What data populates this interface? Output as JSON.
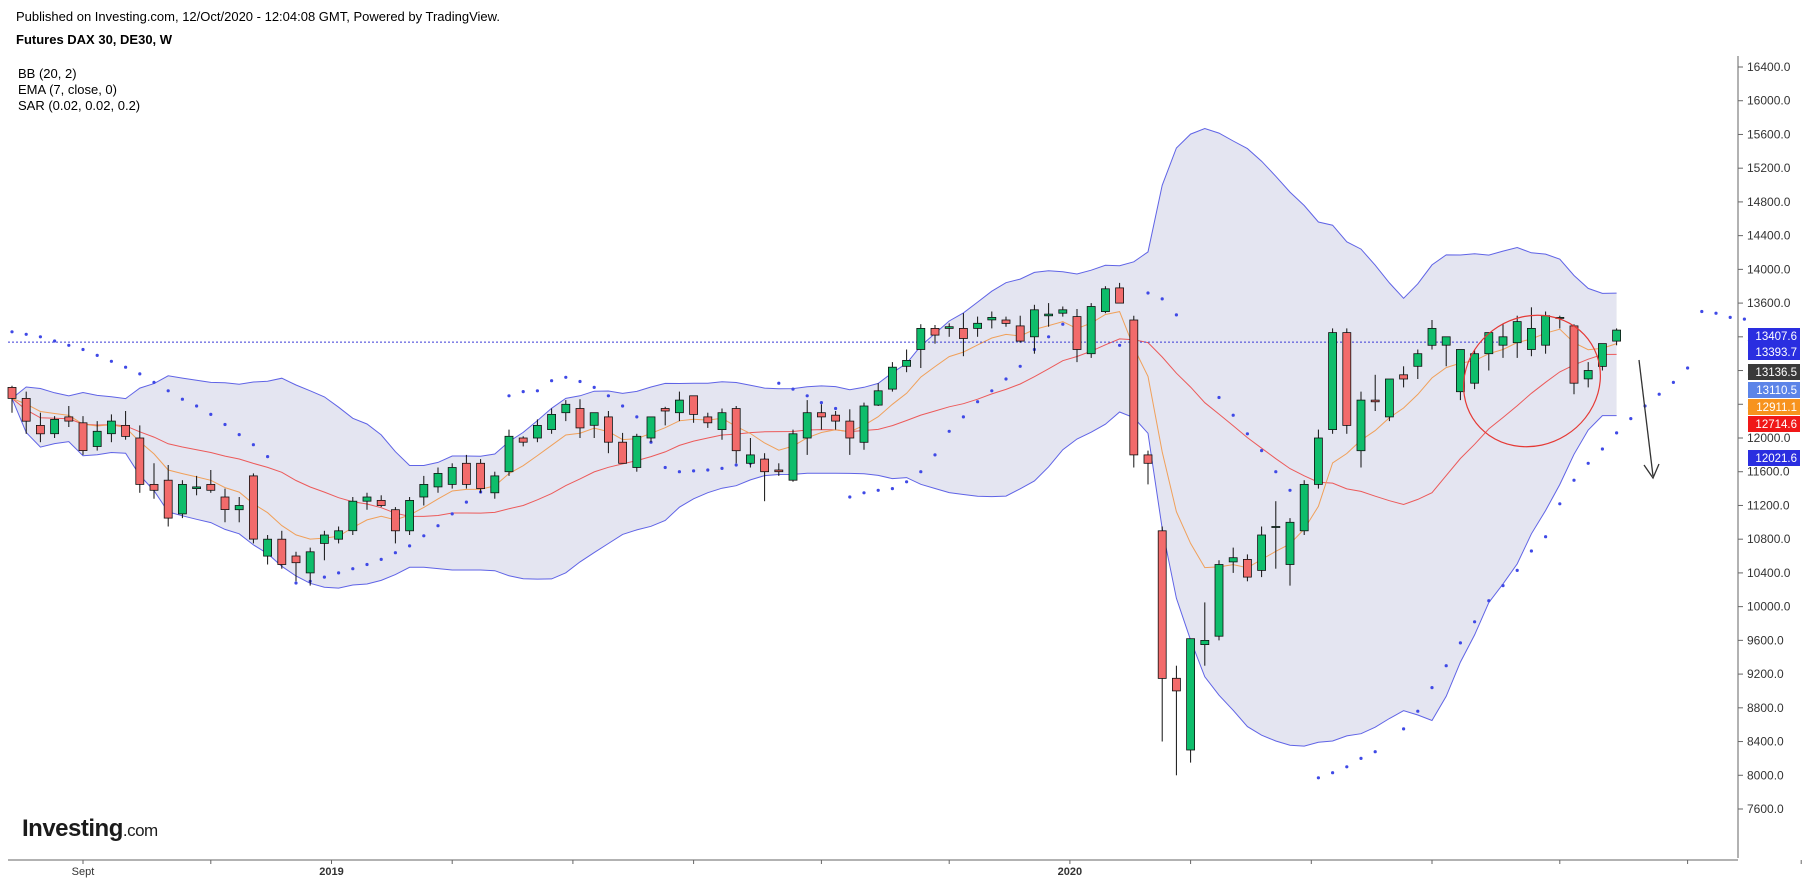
{
  "header": {
    "published": "Published on Investing.com, 12/Oct/2020 - 12:04:08 GMT, Powered by TradingView.",
    "symbol": "Futures DAX 30, DE30, W"
  },
  "indicators": [
    "BB (20, 2)",
    "EMA (7, close, 0)",
    "SAR (0.02, 0.02, 0.2)"
  ],
  "logo": {
    "main": "Investing",
    "suffix": ".com"
  },
  "colors": {
    "up": "#0ebd6b",
    "down": "#f26b6b",
    "bb_band": "#5f63e6",
    "bb_fill": "#e4e5f1",
    "ema": "#f0a05a",
    "bb_basis": "#ec5a5a",
    "sar": "#3f49e6",
    "annotation": "#e53935"
  },
  "chart_data": {
    "type": "candlestick",
    "ylim": [
      7500,
      16500
    ],
    "y_ticks": [
      "16400.0",
      "16000.0",
      "15600.0",
      "15200.0",
      "14800.0",
      "14400.0",
      "14000.0",
      "13600.0",
      "13200.0",
      "12800.0",
      "12400.0",
      "12000.0",
      "11600.0",
      "11200.0",
      "10800.0",
      "10400.0",
      "10000.0",
      "9600.0",
      "9200.0",
      "8800.0",
      "8400.0",
      "8000.0",
      "7600.0"
    ],
    "x_labels": [
      {
        "label": "Sept",
        "bar": 5
      },
      {
        "label": "2019",
        "bar": 22.5,
        "bold": true
      },
      {
        "label": "2020",
        "bar": 74.5,
        "bold": true
      }
    ],
    "x_minor_ticks": [
      14,
      31,
      39.5,
      48,
      57,
      66,
      83,
      91.5,
      100,
      109,
      118,
      126,
      135
    ],
    "candles": [
      [
        12600,
        12620,
        12300,
        12470
      ],
      [
        12470,
        12550,
        12050,
        12200
      ],
      [
        12150,
        12300,
        11950,
        12050
      ],
      [
        12050,
        12260,
        12000,
        12220
      ],
      [
        12250,
        12380,
        12130,
        12200
      ],
      [
        12180,
        12260,
        11800,
        11850
      ],
      [
        11900,
        12200,
        11850,
        12080
      ],
      [
        12050,
        12280,
        11950,
        12200
      ],
      [
        12150,
        12320,
        11980,
        12020
      ],
      [
        12000,
        12150,
        11350,
        11450
      ],
      [
        11450,
        11700,
        11280,
        11380
      ],
      [
        11500,
        11680,
        10950,
        11050
      ],
      [
        11100,
        11500,
        11050,
        11450
      ],
      [
        11400,
        11550,
        11320,
        11420
      ],
      [
        11450,
        11620,
        11350,
        11380
      ],
      [
        11300,
        11400,
        11000,
        11150
      ],
      [
        11150,
        11300,
        11000,
        11200
      ],
      [
        11550,
        11580,
        10750,
        10800
      ],
      [
        10600,
        10850,
        10500,
        10800
      ],
      [
        10800,
        10900,
        10450,
        10500
      ],
      [
        10600,
        10650,
        10300,
        10520
      ],
      [
        10400,
        10700,
        10250,
        10650
      ],
      [
        10750,
        10900,
        10550,
        10850
      ],
      [
        10800,
        10950,
        10750,
        10900
      ],
      [
        10900,
        11300,
        10850,
        11250
      ],
      [
        11250,
        11350,
        11150,
        11300
      ],
      [
        11260,
        11320,
        11180,
        11200
      ],
      [
        11150,
        11180,
        10750,
        10900
      ],
      [
        10900,
        11300,
        10850,
        11260
      ],
      [
        11300,
        11550,
        11200,
        11450
      ],
      [
        11420,
        11650,
        11350,
        11580
      ],
      [
        11450,
        11700,
        11400,
        11650
      ],
      [
        11700,
        11800,
        11400,
        11450
      ],
      [
        11700,
        11750,
        11350,
        11400
      ],
      [
        11350,
        11600,
        11280,
        11550
      ],
      [
        11600,
        12100,
        11550,
        12020
      ],
      [
        12000,
        12020,
        11900,
        11950
      ],
      [
        12000,
        12220,
        11950,
        12150
      ],
      [
        12100,
        12350,
        12050,
        12280
      ],
      [
        12300,
        12450,
        12200,
        12400
      ],
      [
        12350,
        12460,
        12000,
        12120
      ],
      [
        12150,
        12300,
        12000,
        12300
      ],
      [
        12250,
        12320,
        11820,
        11950
      ],
      [
        11950,
        12060,
        11700,
        11700
      ],
      [
        11650,
        12050,
        11600,
        12020
      ],
      [
        12000,
        12250,
        11950,
        12250
      ],
      [
        12350,
        12370,
        12150,
        12320
      ],
      [
        12300,
        12550,
        12200,
        12450
      ],
      [
        12500,
        12500,
        12180,
        12280
      ],
      [
        12250,
        12300,
        12120,
        12180
      ],
      [
        12100,
        12350,
        11980,
        12300
      ],
      [
        12350,
        12380,
        11700,
        11850
      ],
      [
        11700,
        12000,
        11650,
        11800
      ],
      [
        11750,
        11820,
        11250,
        11600
      ],
      [
        11620,
        11700,
        11550,
        11600
      ],
      [
        11500,
        12100,
        11480,
        12050
      ],
      [
        12000,
        12450,
        11800,
        12300
      ],
      [
        12300,
        12400,
        12100,
        12250
      ],
      [
        12270,
        12320,
        12100,
        12200
      ],
      [
        12200,
        12340,
        11800,
        12000
      ],
      [
        11950,
        12420,
        11860,
        12380
      ],
      [
        12390,
        12650,
        12380,
        12560
      ],
      [
        12580,
        12900,
        12550,
        12840
      ],
      [
        12850,
        13050,
        12780,
        12920
      ],
      [
        13050,
        13350,
        12830,
        13300
      ],
      [
        13300,
        13340,
        13120,
        13220
      ],
      [
        13300,
        13360,
        13200,
        13320
      ],
      [
        13300,
        13480,
        12970,
        13180
      ],
      [
        13300,
        13440,
        13200,
        13360
      ],
      [
        13400,
        13500,
        13300,
        13430
      ],
      [
        13400,
        13440,
        13320,
        13360
      ],
      [
        13330,
        13450,
        13130,
        13150
      ],
      [
        13200,
        13580,
        13000,
        13520
      ],
      [
        13450,
        13600,
        13320,
        13470
      ],
      [
        13480,
        13560,
        13440,
        13520
      ],
      [
        13440,
        13530,
        12900,
        13050
      ],
      [
        13000,
        13600,
        12950,
        13560
      ],
      [
        13500,
        13800,
        13480,
        13770
      ],
      [
        13780,
        13840,
        13600,
        13600
      ],
      [
        13400,
        13450,
        11650,
        11800
      ],
      [
        11800,
        11850,
        11450,
        11700
      ],
      [
        10900,
        10950,
        8400,
        9150
      ],
      [
        9150,
        9300,
        8000,
        9000
      ],
      [
        8300,
        9600,
        8150,
        9620
      ],
      [
        9550,
        10050,
        9300,
        9600
      ],
      [
        9650,
        10550,
        9600,
        10500
      ],
      [
        10530,
        10700,
        10400,
        10580
      ],
      [
        10560,
        10620,
        10300,
        10350
      ],
      [
        10430,
        10950,
        10350,
        10850
      ],
      [
        10950,
        11250,
        10450,
        10950
      ],
      [
        10500,
        11050,
        10250,
        11000
      ],
      [
        10900,
        11500,
        10850,
        11450
      ],
      [
        11450,
        12100,
        11400,
        12000
      ],
      [
        12100,
        13300,
        12050,
        13250
      ],
      [
        13250,
        13300,
        12050,
        12150
      ],
      [
        11850,
        12550,
        11650,
        12450
      ],
      [
        12450,
        12750,
        12320,
        12430
      ],
      [
        12250,
        12700,
        12200,
        12700
      ],
      [
        12750,
        12850,
        12600,
        12700
      ],
      [
        12850,
        13050,
        12700,
        13000
      ],
      [
        13100,
        13400,
        13050,
        13300
      ],
      [
        13100,
        13200,
        12850,
        13200
      ],
      [
        12550,
        13000,
        12450,
        13050
      ],
      [
        12650,
        13050,
        12580,
        13000
      ],
      [
        13000,
        13200,
        12800,
        13250
      ],
      [
        13100,
        13350,
        12950,
        13200
      ],
      [
        13130,
        13450,
        12950,
        13380
      ],
      [
        13050,
        13550,
        12970,
        13300
      ],
      [
        13100,
        13500,
        13000,
        13450
      ],
      [
        13420,
        13450,
        13300,
        13430
      ],
      [
        13330,
        13350,
        12520,
        12650
      ],
      [
        12700,
        12900,
        12600,
        12800
      ],
      [
        12850,
        13100,
        12800,
        13120
      ],
      [
        13150,
        13300,
        13100,
        13280
      ]
    ],
    "sar": [
      [
        0,
        13260
      ],
      [
        1,
        13230
      ],
      [
        2,
        13200
      ],
      [
        3,
        13150
      ],
      [
        4,
        13100
      ],
      [
        5,
        13050
      ],
      [
        6,
        12980
      ],
      [
        7,
        12910
      ],
      [
        8,
        12840
      ],
      [
        9,
        12760
      ],
      [
        10,
        12660
      ],
      [
        11,
        12560
      ],
      [
        12,
        12460
      ],
      [
        13,
        12380
      ],
      [
        14,
        12280
      ],
      [
        15,
        12160
      ],
      [
        16,
        12040
      ],
      [
        17,
        11920
      ],
      [
        18,
        11780
      ],
      [
        20,
        10280
      ],
      [
        21,
        10300
      ],
      [
        22,
        10350
      ],
      [
        23,
        10400
      ],
      [
        24,
        10450
      ],
      [
        25,
        10500
      ],
      [
        26,
        10560
      ],
      [
        27,
        10640
      ],
      [
        28,
        10720
      ],
      [
        29,
        10840
      ],
      [
        30,
        10960
      ],
      [
        31,
        11100
      ],
      [
        32,
        11240
      ],
      [
        33,
        11360
      ],
      [
        34,
        11500
      ],
      [
        35,
        12500
      ],
      [
        36,
        12550
      ],
      [
        37,
        12560
      ],
      [
        38,
        12680
      ],
      [
        39,
        12720
      ],
      [
        40,
        12670
      ],
      [
        41,
        12600
      ],
      [
        42,
        12500
      ],
      [
        43,
        12380
      ],
      [
        44,
        12250
      ],
      [
        45,
        11950
      ],
      [
        46,
        11650
      ],
      [
        47,
        11600
      ],
      [
        48,
        11610
      ],
      [
        49,
        11620
      ],
      [
        50,
        11640
      ],
      [
        51,
        11680
      ],
      [
        52,
        11700
      ],
      [
        53,
        11740
      ],
      [
        54,
        12650
      ],
      [
        55,
        12580
      ],
      [
        56,
        12500
      ],
      [
        57,
        12420
      ],
      [
        58,
        12350
      ],
      [
        59,
        11300
      ],
      [
        60,
        11350
      ],
      [
        61,
        11380
      ],
      [
        62,
        11400
      ],
      [
        63,
        11480
      ],
      [
        64,
        11600
      ],
      [
        65,
        11800
      ],
      [
        66,
        12080
      ],
      [
        67,
        12250
      ],
      [
        68,
        12430
      ],
      [
        69,
        12560
      ],
      [
        70,
        12700
      ],
      [
        71,
        12850
      ],
      [
        72,
        13050
      ],
      [
        73,
        13200
      ],
      [
        74,
        13350
      ],
      [
        75,
        13420
      ],
      [
        76,
        13480
      ],
      [
        78,
        13100
      ],
      [
        79,
        13170
      ],
      [
        80,
        13720
      ],
      [
        81,
        13650
      ],
      [
        82,
        13460
      ],
      [
        85,
        12480
      ],
      [
        86,
        12270
      ],
      [
        87,
        12050
      ],
      [
        88,
        11850
      ],
      [
        89,
        11600
      ],
      [
        90,
        11380
      ],
      [
        91,
        11120
      ],
      [
        92,
        7970
      ],
      [
        93,
        8030
      ],
      [
        94,
        8100
      ],
      [
        95,
        8200
      ],
      [
        96,
        8280
      ],
      [
        98,
        8550
      ],
      [
        99,
        8760
      ],
      [
        100,
        9040
      ],
      [
        101,
        9300
      ],
      [
        102,
        9570
      ],
      [
        103,
        9820
      ],
      [
        104,
        10070
      ],
      [
        105,
        10250
      ],
      [
        106,
        10430
      ],
      [
        107,
        10660
      ],
      [
        108,
        10830
      ],
      [
        109,
        11220
      ],
      [
        110,
        11500
      ],
      [
        111,
        11700
      ],
      [
        112,
        11870
      ],
      [
        113,
        12060
      ],
      [
        114,
        12230
      ],
      [
        115,
        12380
      ],
      [
        116,
        12520
      ],
      [
        117,
        12660
      ],
      [
        118,
        12830
      ],
      [
        119,
        13500
      ],
      [
        120,
        13480
      ],
      [
        121,
        13430
      ],
      [
        122,
        13410
      ]
    ],
    "current_price": 13136.5,
    "price_badges": [
      {
        "label": "13407.6",
        "value": 13407.6,
        "color": "#2a2ee0"
      },
      {
        "label": "13393.7",
        "value": 13393.7,
        "color": "#2a2ee0"
      },
      {
        "label": "13136.5",
        "value": 13136.5,
        "color": "#3a3a3a"
      },
      {
        "label": "13110.5",
        "value": 13110.5,
        "color": "#5c84e8"
      },
      {
        "label": "12911.1",
        "value": 12911.1,
        "color": "#f7931e"
      },
      {
        "label": "12714.6",
        "value": 12714.6,
        "color": "#f01818"
      },
      {
        "label": "12021.6",
        "value": 12021.6,
        "color": "#2a2ee0"
      }
    ]
  }
}
